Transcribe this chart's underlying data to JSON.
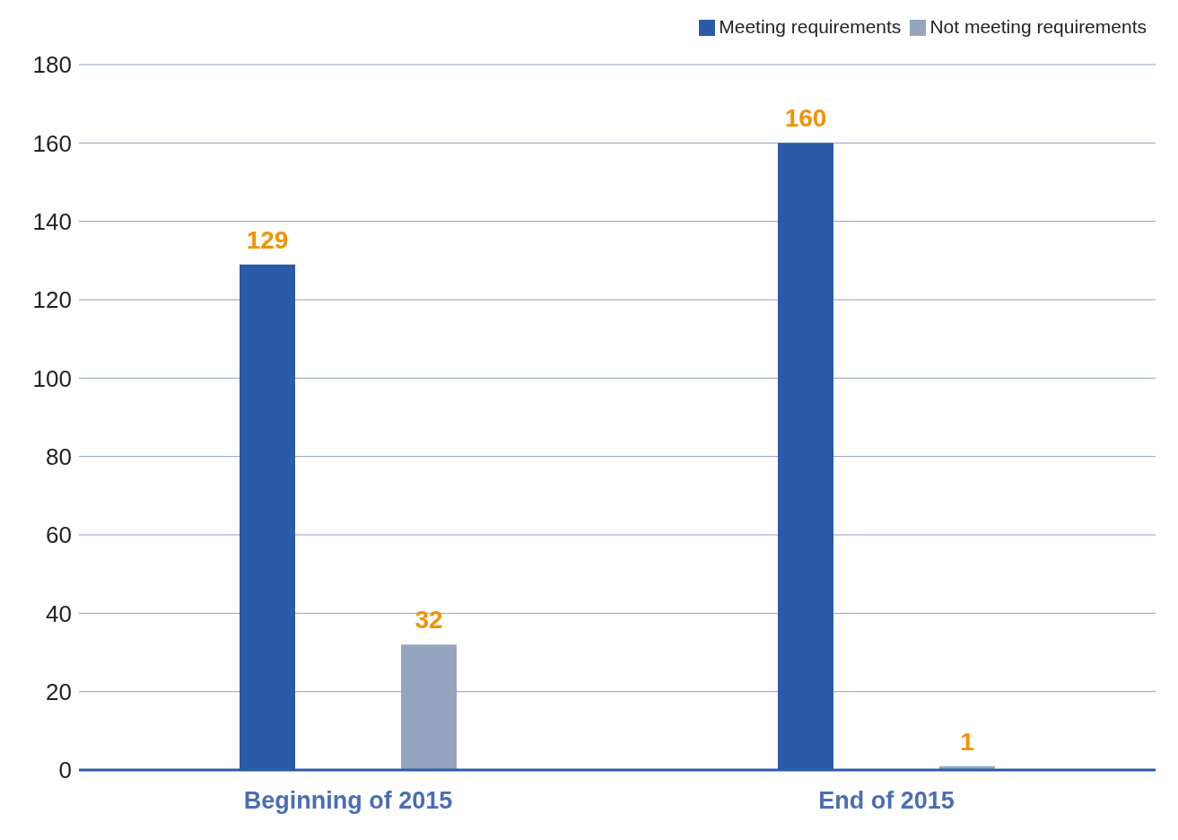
{
  "chart_data": {
    "type": "bar",
    "categories": [
      "Beginning of 2015",
      "End of 2015"
    ],
    "series": [
      {
        "name": "Meeting requirements",
        "color": "#2a5aa8",
        "values": [
          129,
          160
        ]
      },
      {
        "name": "Not meeting requirements",
        "color": "#95a5bf",
        "values": [
          32,
          1
        ]
      }
    ],
    "ylim": [
      0,
      180
    ],
    "yticks": [
      0,
      20,
      40,
      60,
      80,
      100,
      120,
      140,
      160,
      180
    ],
    "grid": "y",
    "legend": "top right",
    "data_labels": true
  }
}
